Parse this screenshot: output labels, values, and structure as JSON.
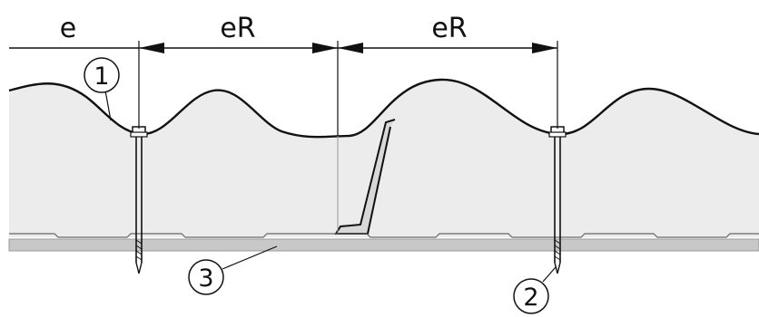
{
  "dimensions": {
    "edge_label": "e",
    "spacing_label_1": "eR",
    "spacing_label_2": "eR"
  },
  "callouts": [
    {
      "id": "1",
      "label": "1"
    },
    {
      "id": "2",
      "label": "2"
    },
    {
      "id": "3",
      "label": "3"
    }
  ],
  "colors": {
    "panel_fill": "#ececec",
    "substructure": "#c8c8c8",
    "line": "#111111"
  }
}
